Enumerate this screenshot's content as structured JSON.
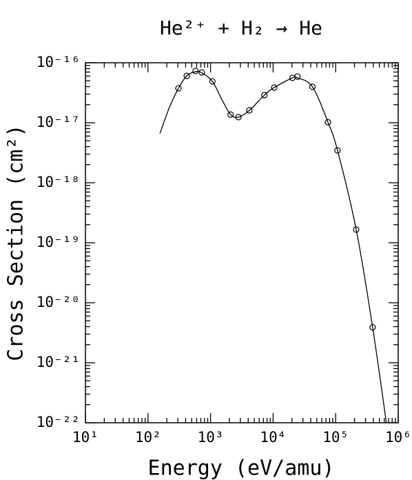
{
  "chart_data": {
    "type": "scatter",
    "title": "He²⁺ + H₂ → He",
    "x_label": "Energy (eV/amu)",
    "y_label": "Cross Section (cm²)",
    "log_x": true,
    "log_y": true,
    "xlim": [
      10,
      1000000
    ],
    "ylim": [
      1e-22,
      1e-16
    ],
    "xticks": [
      {
        "value": 10,
        "label": "10¹"
      },
      {
        "value": 100,
        "label": "10²"
      },
      {
        "value": 1000,
        "label": "10³"
      },
      {
        "value": 10000,
        "label": "10⁴"
      },
      {
        "value": 100000,
        "label": "10⁵"
      },
      {
        "value": 1000000,
        "label": "10⁶"
      }
    ],
    "yticks": [
      {
        "value": 1e-22,
        "label": "10⁻²²"
      },
      {
        "value": 1e-21,
        "label": "10⁻²¹"
      },
      {
        "value": 1e-20,
        "label": "10⁻²⁰"
      },
      {
        "value": 1e-19,
        "label": "10⁻¹⁹"
      },
      {
        "value": 1e-18,
        "label": "10⁻¹⁸"
      },
      {
        "value": 1e-17,
        "label": "10⁻¹⁷"
      },
      {
        "value": 1e-16,
        "label": "10⁻¹⁶"
      }
    ],
    "color": "#000000",
    "points": {
      "x": [
        307,
        417,
        575,
        724,
        1070,
        2090,
        2790,
        4170,
        7240,
        10400,
        20400,
        24500,
        42600,
        75300,
        107000,
        213000,
        390000
      ],
      "y": [
        3.76e-17,
        6.05e-17,
        7.3e-17,
        6.9e-17,
        4.9e-17,
        1.37e-17,
        1.24e-17,
        1.61e-17,
        2.88e-17,
        3.86e-17,
        5.6e-17,
        5.9e-17,
        3.97e-17,
        1.02e-17,
        3.46e-18,
        1.66e-19,
        3.9e-21
      ]
    },
    "fit": {
      "x": [
        155,
        220,
        307,
        417,
        575,
        724,
        1070,
        1500,
        2090,
        2790,
        4170,
        7240,
        10400,
        20400,
        24500,
        42600,
        75300,
        107000,
        213000,
        390000,
        646000
      ],
      "y": [
        6.6e-18,
        1.8e-17,
        3.76e-17,
        6.05e-17,
        7.1e-17,
        6.8e-17,
        4.9e-17,
        2.5e-17,
        1.37e-17,
        1.24e-17,
        1.61e-17,
        2.88e-17,
        3.86e-17,
        5.6e-17,
        5.6e-17,
        3.97e-17,
        1.02e-17,
        3.46e-18,
        1.66e-19,
        3.9e-21,
        1e-22
      ]
    }
  }
}
